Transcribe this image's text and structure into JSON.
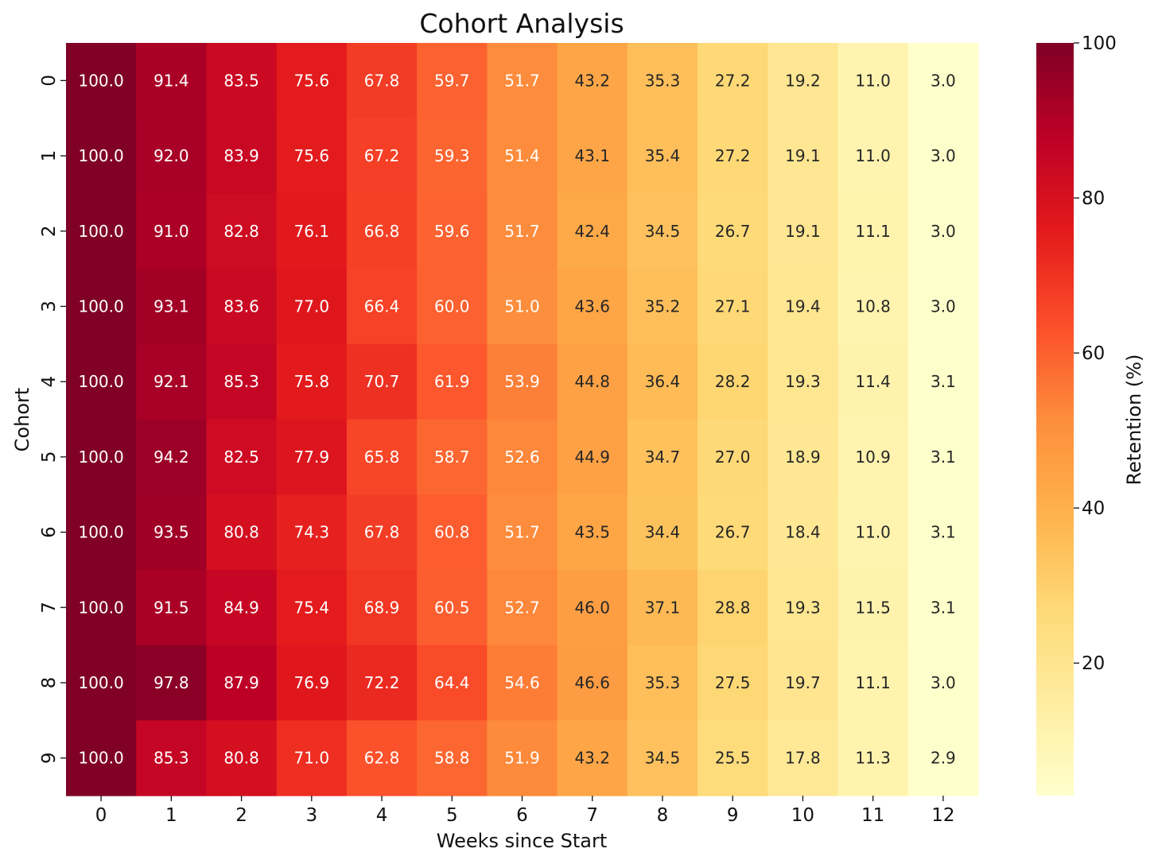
{
  "chart_data": {
    "type": "heatmap",
    "title": "Cohort Analysis",
    "xlabel": "Weeks since Start",
    "ylabel": "Cohort",
    "x_categories": [
      "0",
      "1",
      "2",
      "3",
      "4",
      "5",
      "6",
      "7",
      "8",
      "9",
      "10",
      "11",
      "12"
    ],
    "y_categories": [
      "0",
      "1",
      "2",
      "3",
      "4",
      "5",
      "6",
      "7",
      "8",
      "9"
    ],
    "values": [
      [
        100.0,
        91.4,
        83.5,
        75.6,
        67.8,
        59.7,
        51.7,
        43.2,
        35.3,
        27.2,
        19.2,
        11.0,
        3.0
      ],
      [
        100.0,
        92.0,
        83.9,
        75.6,
        67.2,
        59.3,
        51.4,
        43.1,
        35.4,
        27.2,
        19.1,
        11.0,
        3.0
      ],
      [
        100.0,
        91.0,
        82.8,
        76.1,
        66.8,
        59.6,
        51.7,
        42.4,
        34.5,
        26.7,
        19.1,
        11.1,
        3.0
      ],
      [
        100.0,
        93.1,
        83.6,
        77.0,
        66.4,
        60.0,
        51.0,
        43.6,
        35.2,
        27.1,
        19.4,
        10.8,
        3.0
      ],
      [
        100.0,
        92.1,
        85.3,
        75.8,
        70.7,
        61.9,
        53.9,
        44.8,
        36.4,
        28.2,
        19.3,
        11.4,
        3.1
      ],
      [
        100.0,
        94.2,
        82.5,
        77.9,
        65.8,
        58.7,
        52.6,
        44.9,
        34.7,
        27.0,
        18.9,
        10.9,
        3.1
      ],
      [
        100.0,
        93.5,
        80.8,
        74.3,
        67.8,
        60.8,
        51.7,
        43.5,
        34.4,
        26.7,
        18.4,
        11.0,
        3.1
      ],
      [
        100.0,
        91.5,
        84.9,
        75.4,
        68.9,
        60.5,
        52.7,
        46.0,
        37.1,
        28.8,
        19.3,
        11.5,
        3.1
      ],
      [
        100.0,
        97.8,
        87.9,
        76.9,
        72.2,
        64.4,
        54.6,
        46.6,
        35.3,
        27.5,
        19.7,
        11.1,
        3.0
      ],
      [
        100.0,
        85.3,
        80.8,
        71.0,
        62.8,
        58.8,
        51.9,
        43.2,
        34.5,
        25.5,
        17.8,
        11.3,
        2.9
      ]
    ],
    "value_format": "0.0",
    "colorbar": {
      "label": "Retention (%)",
      "min": 2.9,
      "max": 100,
      "ticks": [
        20,
        40,
        60,
        80,
        100
      ],
      "colormap": "YlOrRd",
      "stops": [
        [
          0.0,
          "#ffffcc"
        ],
        [
          0.125,
          "#ffeda0"
        ],
        [
          0.25,
          "#fed976"
        ],
        [
          0.375,
          "#feb24c"
        ],
        [
          0.5,
          "#fd8d3c"
        ],
        [
          0.625,
          "#fc4e2a"
        ],
        [
          0.75,
          "#e31a1c"
        ],
        [
          0.875,
          "#bd0026"
        ],
        [
          1.0,
          "#800026"
        ]
      ]
    }
  }
}
